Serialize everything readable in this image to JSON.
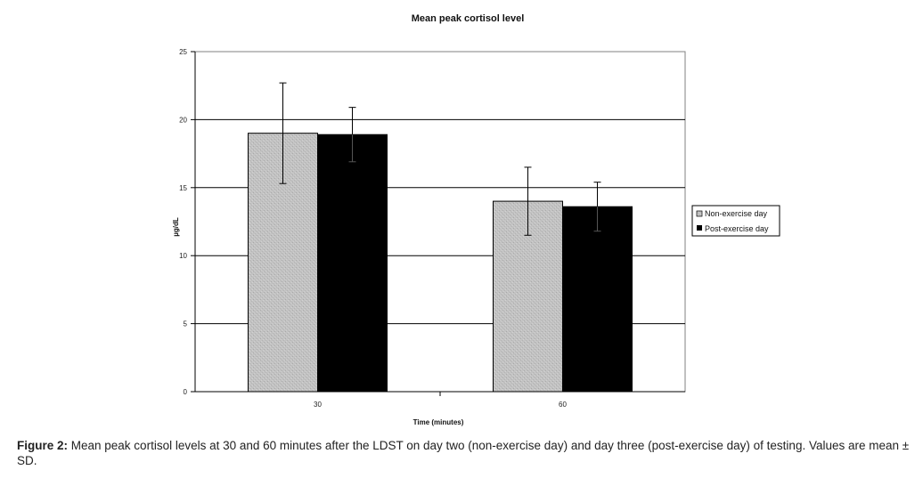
{
  "chart_data": {
    "type": "bar",
    "title": "Mean peak cortisol level",
    "xlabel": "Time (minutes)",
    "ylabel": "µg/dL",
    "categories": [
      "30",
      "60"
    ],
    "series": [
      {
        "name": "Non-exercise day",
        "values": [
          19.0,
          14.0
        ],
        "sd": [
          3.7,
          2.5
        ],
        "color": "#c2c2c2"
      },
      {
        "name": "Post-exercise day",
        "values": [
          18.9,
          13.6
        ],
        "sd": [
          2.0,
          1.8
        ],
        "color": "#000000"
      }
    ],
    "ylim": [
      0,
      25
    ],
    "yticks": [
      0,
      5,
      10,
      15,
      20,
      25
    ],
    "grid": true,
    "legend": "right",
    "error_bars": "mean ± SD"
  },
  "caption": {
    "label": "Figure 2:",
    "text": " Mean peak cortisol levels at 30 and 60 minutes after the LDST on day two (non-exercise day) and day three (post-exercise day) of testing. Values are mean ± SD."
  }
}
